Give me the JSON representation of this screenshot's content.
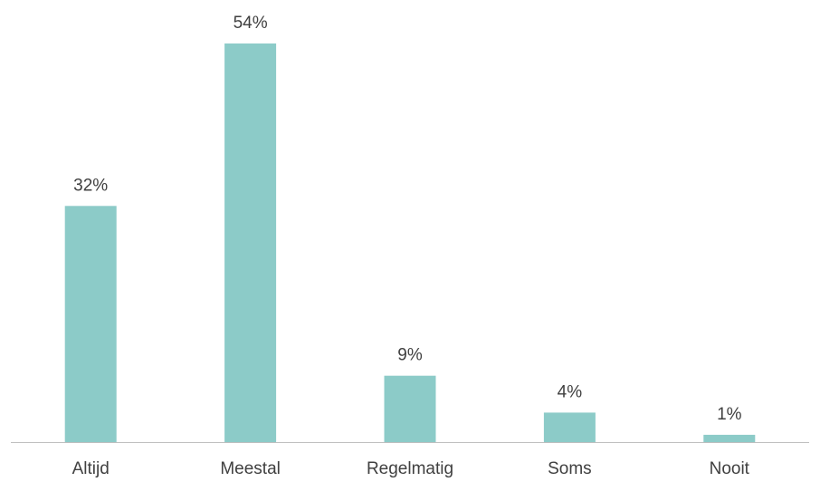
{
  "chart_data": {
    "type": "bar",
    "categories": [
      "Altijd",
      "Meestal",
      "Regelmatig",
      "Soms",
      "Nooit"
    ],
    "values": [
      32,
      54,
      9,
      4,
      1
    ],
    "value_labels": [
      "32%",
      "54%",
      "9%",
      "4%",
      "1%"
    ],
    "unit": "%",
    "title": "",
    "xlabel": "",
    "ylabel": "",
    "ylim": [
      0,
      54
    ],
    "grid": false,
    "legend": "none",
    "bar_color": "#8ccbc8"
  }
}
